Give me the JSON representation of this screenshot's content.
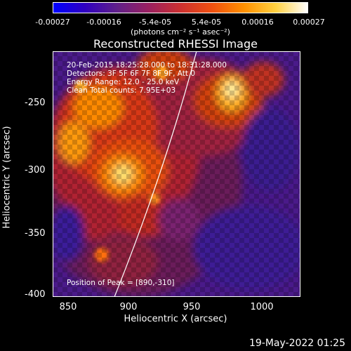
{
  "colorbar": {
    "ticks": [
      "-0.00027",
      "-0.00016",
      "-5.4e-05",
      "5.4e-05",
      "0.00016",
      "0.00027"
    ],
    "units": "(photons cm⁻² s⁻¹ asec⁻²)",
    "colors": [
      "#0000ff",
      "#3000c0",
      "#60208a",
      "#9a2060",
      "#cc3030",
      "#f05010",
      "#ff9000",
      "#ffd040",
      "#ffffff"
    ]
  },
  "plot": {
    "title": "Reconstructed RHESSI Image",
    "xlabel": "Heliocentric X (arcsec)",
    "ylabel": "Heliocentric Y (arcsec)",
    "xticks": [
      "850",
      "900",
      "950",
      "1000"
    ],
    "yticks": [
      "-250",
      "-300",
      "-350",
      "-400"
    ],
    "annotations": {
      "time": "20-Feb-2015 18:25:28.000 to 18:31:28.000",
      "detectors": "Detectors: 3F 5F 6F 7F 8F 9F, Att 0",
      "energy": "Energy Range: 12.0 - 25.0 keV",
      "clean": "Clean     Total counts: 7.95E+03",
      "peak": "Position of Peak = [890,-310]"
    }
  },
  "footer": {
    "date": "19-May-2022 01:25"
  }
}
